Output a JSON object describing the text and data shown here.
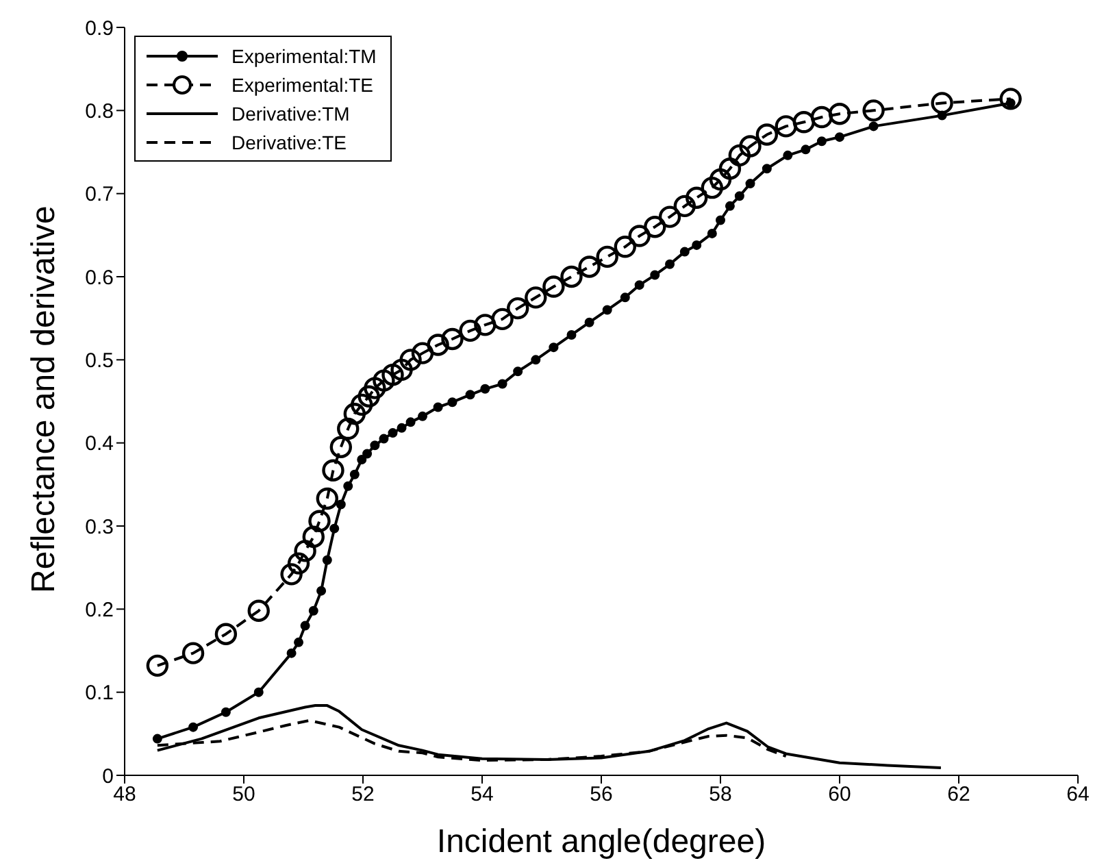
{
  "chart_data": {
    "type": "line",
    "xlabel": "Incident angle(degree)",
    "ylabel": "Reflectance and derivative",
    "xlim": [
      48,
      64
    ],
    "xticks": [
      48,
      50,
      52,
      54,
      56,
      58,
      60,
      62,
      64
    ],
    "ylim": [
      0,
      0.9
    ],
    "yticks": [
      0,
      0.1,
      0.2,
      0.3,
      0.4,
      0.5,
      0.6,
      0.7,
      0.8,
      0.9
    ],
    "legend": "top left",
    "series": [
      {
        "name": "Experimental:TM",
        "color": "#000000",
        "marker": "circle",
        "line_style": "solid",
        "x": [
          48.55,
          49.15,
          49.7,
          50.25,
          50.8,
          50.92,
          51.03,
          51.17,
          51.3,
          51.4,
          51.52,
          51.63,
          51.75,
          51.86,
          51.98,
          52.07,
          52.2,
          52.35,
          52.5,
          52.65,
          52.8,
          53.0,
          53.26,
          53.5,
          53.8,
          54.05,
          54.34,
          54.6,
          54.9,
          55.2,
          55.5,
          55.8,
          56.1,
          56.4,
          56.64,
          56.9,
          57.15,
          57.4,
          57.6,
          57.86,
          58.0,
          58.16,
          58.32,
          58.5,
          58.78,
          59.13,
          59.43,
          59.7,
          60.0,
          60.57,
          61.72,
          62.87
        ],
        "values": [
          0.044,
          0.058,
          0.076,
          0.1,
          0.147,
          0.16,
          0.18,
          0.198,
          0.222,
          0.259,
          0.297,
          0.326,
          0.348,
          0.362,
          0.38,
          0.387,
          0.397,
          0.405,
          0.412,
          0.418,
          0.425,
          0.432,
          0.443,
          0.449,
          0.458,
          0.465,
          0.471,
          0.486,
          0.5,
          0.515,
          0.53,
          0.545,
          0.56,
          0.575,
          0.59,
          0.602,
          0.615,
          0.63,
          0.638,
          0.652,
          0.668,
          0.685,
          0.697,
          0.712,
          0.73,
          0.746,
          0.753,
          0.763,
          0.768,
          0.781,
          0.794,
          0.809
        ]
      },
      {
        "name": "Experimental:TE",
        "color": "#000000",
        "marker": "circle",
        "line_style": "dashed",
        "x": [
          48.55,
          49.15,
          49.7,
          50.25,
          50.8,
          50.92,
          51.03,
          51.17,
          51.27,
          51.4,
          51.5,
          51.63,
          51.75,
          51.86,
          51.98,
          52.1,
          52.2,
          52.35,
          52.5,
          52.65,
          52.8,
          53.0,
          53.26,
          53.5,
          53.8,
          54.05,
          54.34,
          54.6,
          54.9,
          55.2,
          55.5,
          55.8,
          56.1,
          56.4,
          56.64,
          56.9,
          57.15,
          57.4,
          57.6,
          57.86,
          58.0,
          58.16,
          58.32,
          58.5,
          58.78,
          59.1,
          59.4,
          59.7,
          60.0,
          60.57,
          61.72,
          62.87
        ],
        "values": [
          0.132,
          0.147,
          0.17,
          0.198,
          0.242,
          0.255,
          0.27,
          0.287,
          0.306,
          0.333,
          0.367,
          0.395,
          0.417,
          0.435,
          0.446,
          0.456,
          0.466,
          0.475,
          0.482,
          0.488,
          0.5,
          0.508,
          0.518,
          0.525,
          0.535,
          0.542,
          0.549,
          0.562,
          0.575,
          0.588,
          0.6,
          0.612,
          0.624,
          0.636,
          0.649,
          0.66,
          0.672,
          0.685,
          0.695,
          0.707,
          0.717,
          0.73,
          0.746,
          0.757,
          0.771,
          0.781,
          0.786,
          0.792,
          0.796,
          0.8,
          0.809,
          0.814
        ]
      },
      {
        "name": "Derivative:TM",
        "color": "#000000",
        "marker": "none",
        "line_style": "solid",
        "x": [
          48.55,
          49.29,
          50.25,
          51.03,
          51.2,
          51.4,
          51.6,
          51.98,
          52.6,
          53.0,
          53.26,
          54.0,
          55.1,
          56.0,
          56.8,
          57.4,
          57.8,
          58.1,
          58.45,
          58.8,
          59.1,
          60.0,
          60.8,
          61.7
        ],
        "values": [
          0.03,
          0.044,
          0.069,
          0.082,
          0.084,
          0.084,
          0.077,
          0.055,
          0.036,
          0.03,
          0.025,
          0.02,
          0.019,
          0.021,
          0.029,
          0.042,
          0.056,
          0.063,
          0.053,
          0.034,
          0.026,
          0.015,
          0.012,
          0.009
        ]
      },
      {
        "name": "Derivative:TE",
        "color": "#000000",
        "marker": "none",
        "line_style": "dashed",
        "x": [
          48.55,
          49.6,
          50.25,
          50.7,
          51.1,
          51.6,
          52.2,
          52.6,
          53.0,
          53.26,
          54.0,
          55.1,
          56.0,
          56.8,
          57.4,
          57.8,
          58.1,
          58.45,
          58.8,
          59.1
        ],
        "values": [
          0.036,
          0.041,
          0.052,
          0.06,
          0.066,
          0.058,
          0.038,
          0.029,
          0.027,
          0.022,
          0.018,
          0.019,
          0.023,
          0.029,
          0.04,
          0.047,
          0.048,
          0.045,
          0.031,
          0.023
        ]
      }
    ]
  }
}
